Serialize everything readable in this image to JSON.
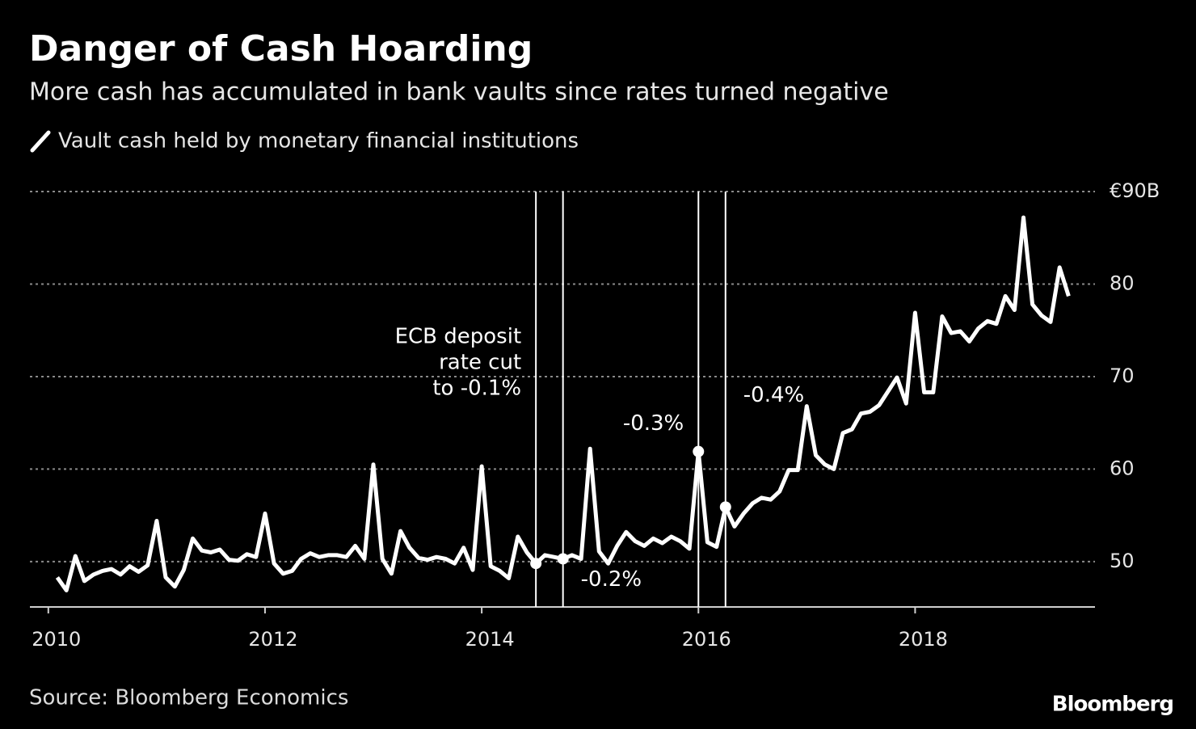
{
  "chart_data": {
    "type": "line",
    "title": "Danger of Cash Hoarding",
    "subtitle": "More cash has accumulated in bank vaults since rates turned negative",
    "source": "Source: Bloomberg Economics",
    "brand": "Bloomberg",
    "x": [
      2010.083,
      2010.167,
      2010.25,
      2010.333,
      2010.417,
      2010.5,
      2010.583,
      2010.667,
      2010.75,
      2010.833,
      2010.917,
      2011,
      2011.083,
      2011.167,
      2011.25,
      2011.333,
      2011.417,
      2011.5,
      2011.583,
      2011.667,
      2011.75,
      2011.833,
      2011.917,
      2012,
      2012.083,
      2012.167,
      2012.25,
      2012.333,
      2012.417,
      2012.5,
      2012.583,
      2012.667,
      2012.75,
      2012.833,
      2012.917,
      2013,
      2013.083,
      2013.167,
      2013.25,
      2013.333,
      2013.417,
      2013.5,
      2013.583,
      2013.667,
      2013.75,
      2013.833,
      2013.917,
      2014,
      2014.083,
      2014.167,
      2014.25,
      2014.333,
      2014.417,
      2014.5,
      2014.583,
      2014.667,
      2014.75,
      2014.833,
      2014.917,
      2015,
      2015.083,
      2015.167,
      2015.25,
      2015.333,
      2015.417,
      2015.5,
      2015.583,
      2015.667,
      2015.75,
      2015.833,
      2015.917,
      2016,
      2016.083,
      2016.167,
      2016.25,
      2016.333,
      2016.417,
      2016.5,
      2016.583,
      2016.667,
      2016.75,
      2016.833,
      2016.917,
      2017,
      2017.083,
      2017.167,
      2017.25,
      2017.333,
      2017.417,
      2017.5,
      2017.583,
      2017.667,
      2017.75,
      2017.833,
      2017.917,
      2018,
      2018.083,
      2018.167,
      2018.25,
      2018.333,
      2018.417,
      2018.5,
      2018.583,
      2018.667,
      2018.75,
      2018.833,
      2018.917,
      2019,
      2019.083,
      2019.167,
      2019.25,
      2019.333,
      2019.417
    ],
    "series": [
      {
        "name": "Vault cash held by monetary financial institutions",
        "color": "#ffffff",
        "values": [
          48.3,
          46.9,
          50.6,
          47.9,
          48.6,
          49.0,
          49.2,
          48.6,
          49.5,
          48.9,
          49.6,
          54.4,
          48.3,
          47.3,
          49.1,
          52.5,
          51.2,
          51.0,
          51.3,
          50.2,
          50.1,
          50.8,
          50.5,
          55.2,
          49.8,
          48.7,
          49.0,
          50.3,
          50.9,
          50.5,
          50.7,
          50.7,
          50.5,
          51.7,
          50.3,
          60.5,
          50.3,
          48.7,
          53.3,
          51.5,
          50.4,
          50.2,
          50.5,
          50.3,
          49.8,
          51.5,
          49.1,
          60.3,
          49.5,
          49.0,
          48.2,
          52.7,
          51.0,
          49.8,
          50.7,
          50.5,
          50.3,
          50.7,
          50.3,
          62.2,
          51.1,
          49.8,
          51.7,
          53.2,
          52.2,
          51.7,
          52.5,
          52.0,
          52.7,
          52.2,
          51.4,
          61.9,
          52.1,
          51.6,
          55.9,
          53.8,
          55.2,
          56.3,
          56.9,
          56.7,
          57.6,
          59.9,
          59.9,
          66.8,
          61.5,
          60.5,
          60.0,
          63.9,
          64.3,
          66.0,
          66.2,
          66.9,
          68.4,
          69.9,
          67.1,
          76.9,
          68.3,
          68.3,
          76.5,
          74.7,
          74.9,
          73.8,
          75.2,
          76.0,
          75.7,
          78.7,
          77.2,
          87.2,
          77.8,
          76.6,
          75.9,
          81.8,
          78.7
        ]
      }
    ],
    "annotations": [
      {
        "x": 2014.5,
        "label": [
          "ECB deposit",
          "rate cut",
          "to -0.1%"
        ]
      },
      {
        "x": 2014.75,
        "label": [
          "-0.2%"
        ]
      },
      {
        "x": 2016,
        "label": [
          "-0.3%"
        ]
      },
      {
        "x": 2016.25,
        "label": [
          "-0.4%"
        ]
      }
    ],
    "xlim": [
      2009.83,
      2019.66
    ],
    "xticks": [
      2010,
      2012,
      2014,
      2016,
      2018
    ],
    "ylim": [
      45.1,
      90
    ],
    "yticks": [
      {
        "value": 90,
        "label": "€90B"
      },
      80,
      70,
      60,
      50
    ],
    "grid": true
  }
}
